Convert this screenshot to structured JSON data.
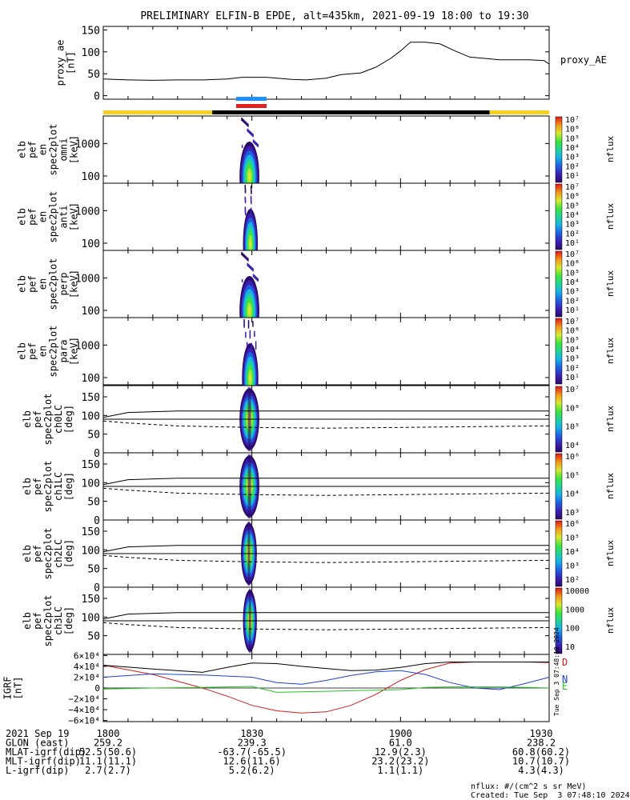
{
  "title": "PRELIMINARY ELFIN-B EPDE, alt=435km, 2021-09-19 18:00 to 19:30",
  "colors": {
    "sunlight_bar": "#f5d222",
    "eclipse_bar": "#000000",
    "blue_marker": "#1e90ff",
    "red_marker": "#e32020",
    "grf_D": "#d11c1c",
    "grf_N": "#1f3fd6",
    "grf_E": "#24c224",
    "grf_total": "#000000"
  },
  "chart_data": [
    {
      "type": "line",
      "panel": "proxy_ae",
      "ylabel_lines": [
        "proxy_ae",
        "[nT]"
      ],
      "legend": "proxy_AE",
      "ylim": [
        -8,
        158
      ],
      "yticks": [
        0,
        50,
        100,
        150
      ],
      "x_minutes": [
        0,
        5,
        10,
        15,
        20,
        25,
        28,
        33,
        38,
        41,
        45,
        48,
        52,
        55,
        58,
        60,
        62,
        65,
        68,
        71,
        74,
        77,
        80,
        83,
        86,
        89,
        90
      ],
      "values": [
        38,
        36,
        35,
        36,
        36,
        38,
        42,
        42,
        37,
        36,
        40,
        48,
        52,
        65,
        85,
        102,
        122,
        122,
        118,
        102,
        88,
        85,
        82,
        82,
        82,
        80,
        72
      ]
    },
    {
      "type": "heatmap",
      "panel": "omni",
      "ylabel_lines": [
        "elb",
        "pef",
        "en",
        "spec2plot",
        "omni",
        "[keV]"
      ],
      "y_scale": "log",
      "ylim": [
        60,
        7000
      ],
      "yticks": [
        100,
        1000
      ],
      "colorbar": {
        "label": "nflux",
        "scale": "log",
        "range": [
          10,
          10000000
        ],
        "ticks": [
          "10⁷",
          "10⁶",
          "10⁵",
          "10⁴",
          "10³",
          "10²",
          "10¹"
        ]
      },
      "active_interval_min": [
        27.5,
        31.5
      ]
    },
    {
      "type": "heatmap",
      "panel": "anti",
      "ylabel_lines": [
        "elb",
        "pef",
        "en",
        "spec2plot",
        "anti",
        "[keV]"
      ],
      "y_scale": "log",
      "ylim": [
        60,
        7000
      ],
      "yticks": [
        100,
        1000
      ],
      "colorbar": {
        "label": "nflux",
        "scale": "log",
        "range": [
          10,
          10000000
        ],
        "ticks": [
          "10⁷",
          "10⁶",
          "10⁵",
          "10⁴",
          "10³",
          "10²",
          "10¹"
        ]
      },
      "active_interval_min": [
        28.2,
        31.2
      ]
    },
    {
      "type": "heatmap",
      "panel": "perp",
      "ylabel_lines": [
        "elb",
        "pef",
        "en",
        "spec2plot",
        "perp",
        "[keV]"
      ],
      "y_scale": "log",
      "ylim": [
        60,
        7000
      ],
      "yticks": [
        100,
        1000
      ],
      "colorbar": {
        "label": "nflux",
        "scale": "log",
        "range": [
          10,
          10000000
        ],
        "ticks": [
          "10⁷",
          "10⁶",
          "10⁵",
          "10⁴",
          "10³",
          "10²",
          "10¹"
        ]
      },
      "active_interval_min": [
        27.5,
        31.5
      ]
    },
    {
      "type": "heatmap",
      "panel": "para",
      "ylabel_lines": [
        "elb",
        "pef",
        "en",
        "spec2plot",
        "para",
        "[keV]"
      ],
      "y_scale": "log",
      "ylim": [
        60,
        7000
      ],
      "yticks": [
        100,
        1000
      ],
      "colorbar": {
        "label": "nflux",
        "scale": "log",
        "range": [
          10,
          10000000
        ],
        "ticks": [
          "10⁷",
          "10⁶",
          "10⁵",
          "10⁴",
          "10³",
          "10²",
          "10¹"
        ]
      },
      "active_interval_min": [
        28.0,
        31.3
      ]
    },
    {
      "type": "heatmap",
      "panel": "ch0LC",
      "ylabel_lines": [
        "elb",
        "pef",
        "spec2plot",
        "ch0LC",
        "[deg]"
      ],
      "ylim": [
        0,
        180
      ],
      "yticks": [
        0,
        50,
        100,
        150
      ],
      "colorbar": {
        "label": "nflux",
        "scale": "log",
        "range": [
          1000,
          10000000
        ],
        "ticks": [
          "10⁷",
          "10⁶",
          "10⁵",
          "10⁴"
        ]
      },
      "active_interval_min": [
        27.5,
        31.5
      ],
      "losscone_upper_deg": [
        95,
        108,
        112,
        112,
        112,
        112,
        112,
        112
      ],
      "losscone_lower_deg": [
        85,
        80,
        72,
        68,
        66,
        68,
        70,
        72
      ],
      "losscone_x_min": [
        0,
        5,
        15,
        30,
        45,
        60,
        75,
        90
      ]
    },
    {
      "type": "heatmap",
      "panel": "ch1LC",
      "ylabel_lines": [
        "elb",
        "pef",
        "spec2plot",
        "ch1LC",
        "[deg]"
      ],
      "ylim": [
        0,
        180
      ],
      "yticks": [
        0,
        50,
        100,
        150
      ],
      "colorbar": {
        "label": "nflux",
        "scale": "log",
        "range": [
          1000,
          10000000
        ],
        "ticks": [
          "10⁶",
          "10⁵",
          "10⁴",
          "10³"
        ]
      },
      "active_interval_min": [
        27.5,
        31.5
      ],
      "losscone_upper_deg": [
        95,
        108,
        112,
        112,
        112,
        112,
        112,
        112
      ],
      "losscone_lower_deg": [
        85,
        80,
        72,
        68,
        66,
        68,
        70,
        72
      ],
      "losscone_x_min": [
        0,
        5,
        15,
        30,
        45,
        60,
        75,
        90
      ]
    },
    {
      "type": "heatmap",
      "panel": "ch2LC",
      "ylabel_lines": [
        "elb",
        "pef",
        "spec2plot",
        "ch2LC",
        "[deg]"
      ],
      "ylim": [
        0,
        180
      ],
      "yticks": [
        0,
        50,
        100,
        150
      ],
      "colorbar": {
        "label": "nflux",
        "scale": "log",
        "range": [
          100,
          1000000
        ],
        "ticks": [
          "10⁶",
          "10⁵",
          "10⁴",
          "10³",
          "10²"
        ]
      },
      "active_interval_min": [
        27.8,
        31.0
      ],
      "losscone_upper_deg": [
        95,
        108,
        112,
        112,
        112,
        112,
        112,
        112
      ],
      "losscone_lower_deg": [
        85,
        80,
        72,
        68,
        66,
        68,
        70,
        72
      ],
      "losscone_x_min": [
        0,
        5,
        15,
        30,
        45,
        60,
        75,
        90
      ]
    },
    {
      "type": "heatmap",
      "panel": "ch3LC",
      "ylabel_lines": [
        "elb",
        "pef",
        "spec2plot",
        "ch3LC",
        "[deg]"
      ],
      "ylim": [
        0,
        180
      ],
      "yticks": [
        50,
        100,
        150
      ],
      "colorbar": {
        "label": "nflux",
        "scale": "log",
        "range": [
          10,
          10000
        ],
        "ticks": [
          "10000",
          "1000",
          "100",
          "10"
        ]
      },
      "active_interval_min": [
        28.2,
        31.0
      ],
      "losscone_upper_deg": [
        95,
        108,
        112,
        112,
        112,
        112,
        112,
        112
      ],
      "losscone_lower_deg": [
        85,
        80,
        72,
        68,
        66,
        68,
        70,
        72
      ],
      "losscone_x_min": [
        0,
        5,
        15,
        30,
        45,
        60,
        75,
        90
      ]
    },
    {
      "type": "line",
      "panel": "IGRF",
      "ylabel_lines": [
        "IGRF",
        "[nT]"
      ],
      "ylim": [
        -62000,
        62000
      ],
      "ytick_labels": [
        "6×10⁴",
        "4×10⁴",
        "2×10⁴",
        "0",
        "−2×10⁴",
        "−4×10⁴",
        "−6×10⁴"
      ],
      "yticks": [
        60000,
        40000,
        20000,
        0,
        -20000,
        -40000,
        -60000
      ],
      "x_minutes": [
        0,
        10,
        20,
        25,
        30,
        35,
        40,
        45,
        50,
        55,
        60,
        65,
        70,
        75,
        80,
        85,
        90
      ],
      "series": [
        {
          "name": "D",
          "values": [
            42000,
            25000,
            0,
            -15000,
            -32000,
            -42000,
            -46000,
            -44000,
            -32000,
            -12000,
            14000,
            34000,
            46000,
            48000,
            48000,
            48000,
            47000
          ]
        },
        {
          "name": "N",
          "values": [
            20000,
            26000,
            24000,
            22000,
            20000,
            10000,
            7000,
            14000,
            23000,
            30000,
            32000,
            25000,
            10000,
            0,
            -3000,
            8000,
            20000
          ]
        },
        {
          "name": "E",
          "values": [
            -2000,
            0,
            1000,
            2000,
            3000,
            -8000,
            -7000,
            -6000,
            -5000,
            -4000,
            -3000,
            1000,
            2000,
            2000,
            2000,
            1000,
            0
          ]
        },
        {
          "name": "",
          "values": [
            42000,
            35000,
            29000,
            38000,
            46000,
            45000,
            40000,
            36000,
            32000,
            33000,
            38000,
            45000,
            48000,
            48000,
            48000,
            48000,
            48000
          ]
        }
      ]
    }
  ],
  "xaxis": {
    "row_labels": [
      "2021 Sep 19",
      "GLON (east)",
      "MLAT-igrf(dip)",
      "MLT-igrf(dip)",
      "L-igrf(dip)"
    ],
    "columns": [
      {
        "time": "1800",
        "glon": "259.2",
        "mlat": "52.5(50.6)",
        "mlt": "11.1(11.1)",
        "l": "2.7(2.7)"
      },
      {
        "time": "1830",
        "glon": "239.3",
        "mlat": "-63.7(-65.5)",
        "mlt": "12.6(11.6)",
        "l": "5.2(6.2)"
      },
      {
        "time": "1900",
        "glon": "61.0",
        "mlat": "12.9(2.3)",
        "mlt": "23.2(23.2)",
        "l": "1.1(1.1)"
      },
      {
        "time": "1930",
        "glon": "238.2",
        "mlat": "60.8(60.2)",
        "mlt": "10.7(10.7)",
        "l": "4.3(4.3)"
      }
    ]
  },
  "sunlight_segments_min": [
    [
      0,
      22,
      "sun"
    ],
    [
      22,
      78,
      "eclipse"
    ],
    [
      78,
      90,
      "sun"
    ]
  ],
  "side_text": "Tue Sep  3 07:48:10 2024",
  "footer": {
    "units": "nflux: #/(cm^2 s sr MeV)",
    "created": "Created: Tue Sep  3 07:48:10 2024"
  }
}
